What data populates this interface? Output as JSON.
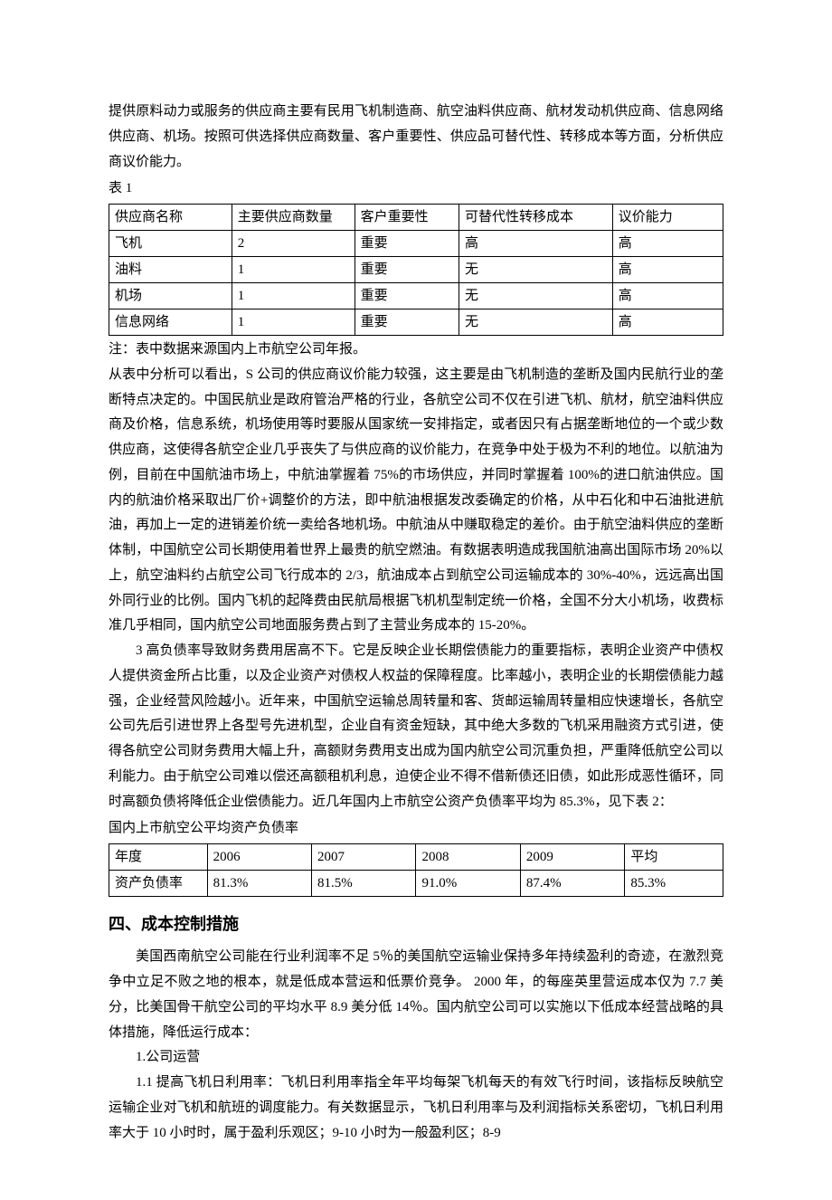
{
  "intro_para": "提供原料动力或服务的供应商主要有民用飞机制造商、航空油料供应商、航材发动机供应商、信息网络供应商、机场。按照可供选择供应商数量、客户重要性、供应品可替代性、转移成本等方面，分析供应商议价能力。",
  "table1": {
    "label": "表 1",
    "columns": [
      "供应商名称",
      "主要供应商数量",
      "客户重要性",
      "可替代性转移成本",
      "议价能力"
    ],
    "rows": [
      [
        "飞机",
        "2",
        "重要",
        "高",
        "高"
      ],
      [
        "油料",
        "1",
        "重要",
        "无",
        "高"
      ],
      [
        "机场",
        "1",
        "重要",
        "无",
        "高"
      ],
      [
        "信息网络",
        "1",
        "重要",
        "无",
        "高"
      ]
    ],
    "col_widths": [
      "20%",
      "20%",
      "17%",
      "25%",
      "18%"
    ],
    "note": "注：表中数据来源国内上市航空公司年报。"
  },
  "analysis_para": "从表中分析可以看出，S 公司的供应商议价能力较强，这主要是由飞机制造的垄断及国内民航行业的垄断特点决定的。中国民航业是政府管治严格的行业，各航空公司不仅在引进飞机、航材，航空油料供应商及价格，信息系统，机场使用等时要服从国家统一安排指定，或者因只有占据垄断地位的一个或少数供应商，这使得各航空企业几乎丧失了与供应商的议价能力，在竞争中处于极为不利的地位。以航油为例，目前在中国航油市场上，中航油掌握着 75%的市场供应，并同时掌握着 100%的进口航油供应。国内的航油价格采取出厂价+调整价的方法，即中航油根据发改委确定的价格，从中石化和中石油批进航油，再加上一定的进销差价统一卖给各地机场。中航油从中赚取稳定的差价。由于航空油料供应的垄断体制，中国航空公司长期使用着世界上最贵的航空燃油。有数据表明造成我国航油高出国际市场 20%以上，航空油料约占航空公司飞行成本的 2/3，航油成本占到航空公司运输成本的 30%-40%，远远高出国外同行业的比例。国内飞机的起降费由民航局根据飞机机型制定统一价格，全国不分大小机场，收费标准几乎相同，国内航空公司地面服务费占到了主营业务成本的 15-20%。",
  "debt_para": "3 高负债率导致财务费用居高不下。它是反映企业长期偿债能力的重要指标，表明企业资产中债权人提供资金所占比重，以及企业资产对债权人权益的保障程度。比率越小，表明企业的长期偿债能力越强，企业经营风险越小。近年来，中国航空运输总周转量和客、货邮运输周转量相应快速增长，各航空公司先后引进世界上各型号先进机型，企业自有资金短缺，其中绝大多数的飞机采用融资方式引进，使得各航空公司财务费用大幅上升，高额财务费用支出成为国内航空公司沉重负担，严重降低航空公司以利能力。由于航空公司难以偿还高额租机利息，迫使企业不得不借新债还旧债，如此形成恶性循环，同时高额负债将降低企业偿债能力。近几年国内上市航空公资产负债率平均为 85.3%，见下表 2：",
  "table2": {
    "caption": "国内上市航空公平均资产负债率",
    "columns": [
      "年度",
      "2006",
      "2007",
      "2008",
      "2009",
      "平均"
    ],
    "rows": [
      [
        "资产负债率",
        "81.3%",
        "81.5%",
        "91.0%",
        "87.4%",
        "85.3%"
      ]
    ],
    "col_widths": [
      "16%",
      "17%",
      "17%",
      "17%",
      "17%",
      "16%"
    ]
  },
  "section4": {
    "title": "四、成本控制措施",
    "para1": "美国西南航空公司能在行业利润率不足 5％的美国航空运输业保持多年持续盈利的奇迹，在激烈竞争中立足不败之地的根本，就是低成本营运和低票价竞争。 2000 年，的每座英里营运成本仅为 7.7 美分，比美国骨干航空公司的平均水平 8.9 美分低 14％。国内航空公司可以实施以下低成本经营战略的具体措施，降低运行成本：",
    "sub1": "1.公司运营",
    "sub1_1": "1.1 提高飞机日利用率：飞机日利用率指全年平均每架飞机每天的有效飞行时间，该指标反映航空运输企业对飞机和航班的调度能力。有关数据显示，飞机日利用率与及利润指标关系密切，飞机日利用率大于 10 小时时，属于盈利乐观区；9-10 小时为一般盈利区；8-9"
  }
}
